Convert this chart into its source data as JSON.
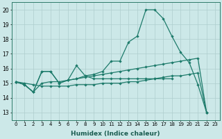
{
  "xlabel": "Humidex (Indice chaleur)",
  "xlim": [
    -0.5,
    23.5
  ],
  "ylim": [
    12.5,
    20.5
  ],
  "yticks": [
    13,
    14,
    15,
    16,
    17,
    18,
    19,
    20
  ],
  "xticks": [
    0,
    1,
    2,
    3,
    4,
    5,
    6,
    7,
    8,
    9,
    10,
    11,
    12,
    13,
    14,
    15,
    16,
    17,
    18,
    19,
    20,
    21,
    22,
    23
  ],
  "line_color": "#1e7b6b",
  "bg_color": "#cce8e8",
  "grid_color": "#aecece",
  "line1_x": [
    0,
    1,
    2,
    3,
    4,
    5,
    6,
    7,
    8,
    9,
    10,
    11,
    12,
    13,
    14,
    15,
    16,
    17,
    18,
    19,
    20,
    21,
    22
  ],
  "line1_y": [
    15.1,
    14.9,
    14.4,
    15.8,
    15.8,
    15.0,
    15.2,
    15.3,
    15.5,
    15.6,
    15.8,
    16.5,
    16.5,
    17.8,
    18.2,
    20.0,
    20.0,
    19.4,
    18.2,
    17.1,
    16.4,
    14.9,
    13.0
  ],
  "line2_x": [
    0,
    1,
    2,
    3,
    4,
    5,
    6,
    7,
    8,
    9,
    10,
    11,
    12,
    13,
    14,
    15,
    16,
    17,
    18,
    19,
    20,
    21,
    22
  ],
  "line2_y": [
    15.1,
    14.9,
    14.4,
    15.0,
    15.1,
    15.1,
    15.2,
    15.3,
    15.4,
    15.5,
    15.6,
    15.7,
    15.8,
    15.9,
    16.0,
    16.1,
    16.2,
    16.3,
    16.4,
    16.5,
    16.6,
    16.7,
    13.0
  ],
  "line3_x": [
    0,
    1,
    2,
    3,
    4,
    5,
    6,
    7,
    8,
    9,
    10,
    11,
    12,
    13,
    14,
    15,
    16,
    17,
    18
  ],
  "line3_y": [
    15.1,
    14.9,
    14.4,
    15.8,
    15.8,
    15.0,
    15.2,
    16.2,
    15.5,
    15.3,
    15.3,
    15.3,
    15.3,
    15.3,
    15.3,
    15.3,
    15.3,
    15.3,
    15.3
  ],
  "line4_x": [
    0,
    1,
    2,
    3,
    4,
    5,
    6,
    7,
    8,
    9,
    10,
    11,
    12,
    13,
    14,
    15,
    16,
    17,
    18,
    19,
    20,
    21,
    22
  ],
  "line4_y": [
    15.1,
    15.0,
    14.9,
    14.8,
    14.8,
    14.8,
    14.8,
    14.9,
    14.9,
    14.9,
    15.0,
    15.0,
    15.0,
    15.1,
    15.1,
    15.2,
    15.3,
    15.4,
    15.5,
    15.5,
    15.6,
    15.7,
    13.0
  ]
}
